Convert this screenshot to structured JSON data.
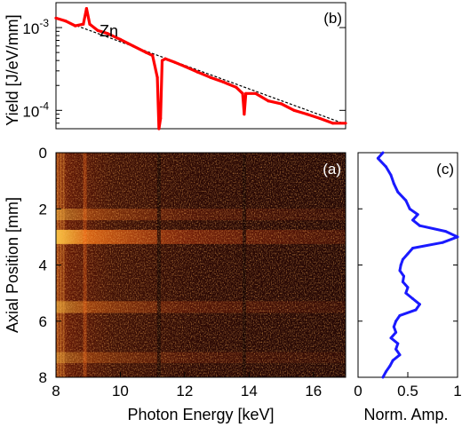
{
  "chart_data": [
    {
      "type": "line",
      "panel_label": "(b)",
      "ylabel": "Yield [J/eV/mm]",
      "yscale": "log",
      "xlim": [
        8,
        17
      ],
      "ylim": [
        6e-05,
        0.002
      ],
      "yticks": [
        {
          "value": 0.001,
          "base": "10",
          "exp": "-3"
        },
        {
          "value": 0.0001,
          "base": "10",
          "exp": "-4"
        }
      ],
      "annotation": "Zn",
      "series": [
        {
          "kind": "measured",
          "color": "#ff0000",
          "x": [
            8.0,
            8.3,
            8.6,
            8.85,
            8.95,
            9.05,
            9.3,
            9.6,
            10.0,
            10.4,
            10.8,
            11.0,
            11.15,
            11.2,
            11.25,
            11.3,
            11.4,
            11.7,
            12.0,
            12.4,
            12.8,
            13.2,
            13.6,
            13.8,
            13.85,
            13.9,
            14.2,
            14.6,
            15.0,
            15.4,
            15.8,
            16.2,
            16.6,
            17.0
          ],
          "y": [
            0.0013,
            0.0012,
            0.00105,
            0.0011,
            0.0017,
            0.0011,
            0.00092,
            0.00085,
            0.00072,
            0.0006,
            0.0005,
            0.00046,
            0.00025,
            6e-05,
            8e-05,
            0.0004,
            0.00042,
            0.00038,
            0.00034,
            0.00029,
            0.00025,
            0.00022,
            0.00019,
            0.00016,
            9e-05,
            0.00016,
            0.00016,
            0.00013,
            0.00012,
            0.0001,
            9e-05,
            8e-05,
            7e-05,
            7e-05
          ]
        },
        {
          "kind": "fit",
          "style": "dashed",
          "color": "#000000",
          "x": [
            8,
            17
          ],
          "y": [
            0.0013,
            6.8e-05
          ]
        }
      ]
    },
    {
      "type": "heatmap",
      "panel_label": "(a)",
      "xlabel": "Photon Energy [keV]",
      "ylabel": "Axial Position [mm]",
      "xlim": [
        8,
        17
      ],
      "ylim": [
        0,
        8
      ],
      "xticks": [
        8,
        10,
        12,
        14,
        16
      ],
      "yticks": [
        0,
        2,
        4,
        6,
        8
      ],
      "y_inverted": true,
      "colormap": "hot",
      "features": [
        {
          "kind": "horizontal-band",
          "y": 3.0,
          "intensity": 1.0
        },
        {
          "kind": "horizontal-band",
          "y": 2.2,
          "intensity": 0.5
        },
        {
          "kind": "horizontal-band",
          "y": 5.5,
          "intensity": 0.55
        },
        {
          "kind": "horizontal-band",
          "y": 7.3,
          "intensity": 0.4
        },
        {
          "kind": "vertical-dark-line",
          "x": 11.2
        },
        {
          "kind": "vertical-dark-line",
          "x": 13.85
        },
        {
          "kind": "vertical-bright-line",
          "x": 8.9
        }
      ]
    },
    {
      "type": "line",
      "panel_label": "(c)",
      "xlabel": "Norm. Amp.",
      "xlim": [
        0,
        1
      ],
      "ylim": [
        0,
        8
      ],
      "xticks": [
        {
          "value": 0,
          "label": "0"
        },
        {
          "value": 0.5,
          "label": "0.5"
        },
        {
          "value": 1,
          "label": "1"
        }
      ],
      "y_inverted": true,
      "series": [
        {
          "color": "#1a1aff",
          "y": [
            0.0,
            0.2,
            0.5,
            0.8,
            1.1,
            1.4,
            1.7,
            2.0,
            2.2,
            2.4,
            2.6,
            2.8,
            3.0,
            3.2,
            3.4,
            3.6,
            3.8,
            4.0,
            4.2,
            4.4,
            4.6,
            4.8,
            5.0,
            5.2,
            5.4,
            5.6,
            5.8,
            6.0,
            6.2,
            6.4,
            6.6,
            6.8,
            7.0,
            7.2,
            7.4,
            7.6,
            7.8,
            8.0
          ],
          "x": [
            0.25,
            0.2,
            0.28,
            0.33,
            0.36,
            0.4,
            0.48,
            0.52,
            0.6,
            0.55,
            0.62,
            0.88,
            1.0,
            0.85,
            0.55,
            0.5,
            0.45,
            0.43,
            0.42,
            0.46,
            0.45,
            0.5,
            0.48,
            0.55,
            0.62,
            0.58,
            0.42,
            0.38,
            0.36,
            0.38,
            0.33,
            0.4,
            0.38,
            0.42,
            0.35,
            0.32,
            0.28,
            0.25
          ]
        }
      ]
    }
  ]
}
